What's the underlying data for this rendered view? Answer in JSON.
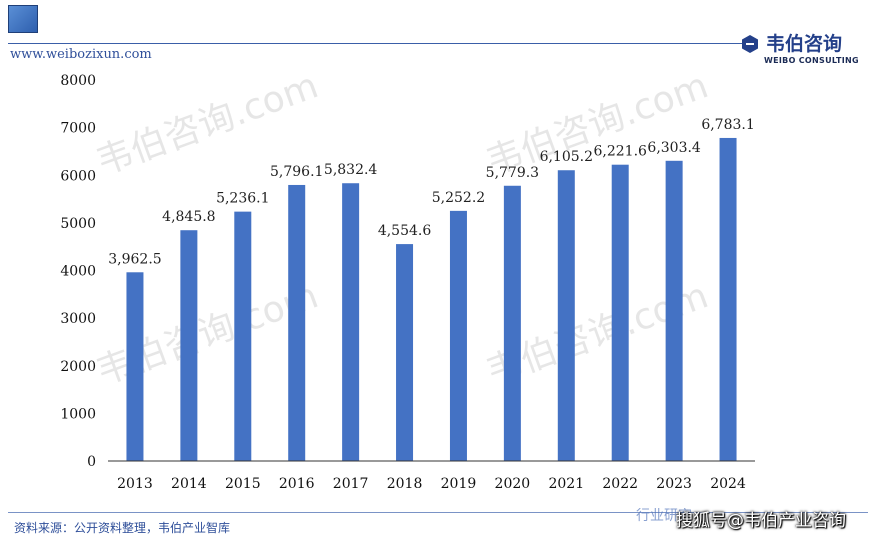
{
  "header": {
    "site_url": "www.weibozixun.com",
    "logo_cn": "韦伯咨询",
    "logo_en": "WEIBO CONSULTING",
    "icon": "hexagon-logo-icon"
  },
  "footer": {
    "source": "资料来源：公开资料整理，韦伯产业智库",
    "mark": "行业研究",
    "attribution": "搜狐号@韦伯产业咨询"
  },
  "watermark": "韦伯咨询.com",
  "colors": {
    "bar": "#4472c4",
    "axis": "#333333",
    "brand": "#24408a"
  },
  "chart_data": {
    "type": "bar",
    "categories": [
      "2013",
      "2014",
      "2015",
      "2016",
      "2017",
      "2018",
      "2019",
      "2020",
      "2021",
      "2022",
      "2023",
      "2024"
    ],
    "values": [
      3962.5,
      4845.8,
      5236.1,
      5796.1,
      5832.4,
      4554.6,
      5252.2,
      5779.3,
      6105.2,
      6221.6,
      6303.4,
      6783.1
    ],
    "labels": [
      "3,962.5",
      "4,845.8",
      "5,236.1",
      "5,796.1",
      "5,832.4",
      "4,554.6",
      "5,252.2",
      "5,779.3",
      "6,105.2",
      "6,221.6",
      "6,303.4",
      "6,783.1"
    ],
    "yticks": [
      "0",
      "1000",
      "2000",
      "3000",
      "4000",
      "5000",
      "6000",
      "7000",
      "8000"
    ],
    "ylim": [
      0,
      8000
    ],
    "grid": false,
    "title": "",
    "xlabel": "",
    "ylabel": ""
  }
}
